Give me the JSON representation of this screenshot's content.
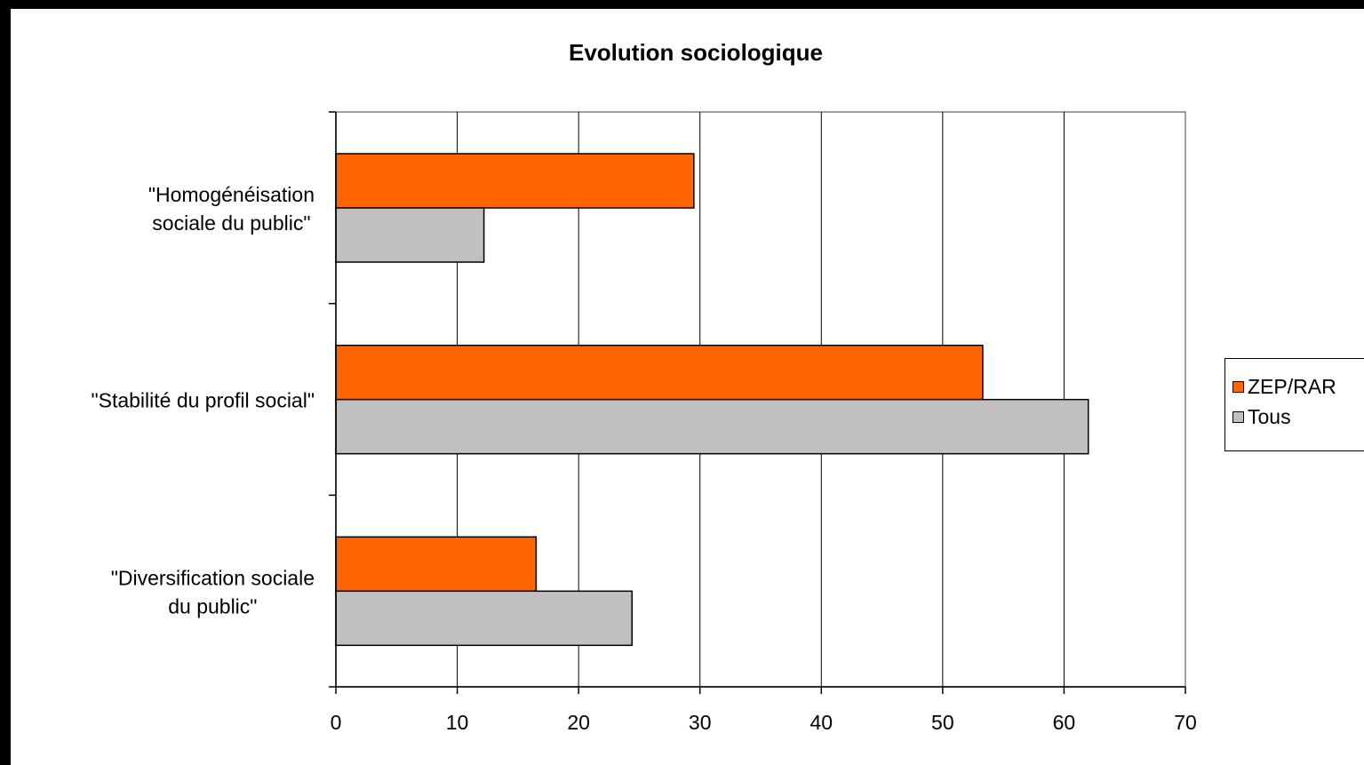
{
  "chart_data": {
    "type": "bar",
    "orientation": "horizontal",
    "title": "Evolution sociologique",
    "xlabel": "",
    "ylabel": "",
    "categories": [
      "\"Homogénéisation sociale du public\"",
      "\"Stabilité du profil social\"",
      "\"Diversification sociale du public\""
    ],
    "category_lines": [
      [
        "\"Homogénéisation",
        "sociale du public\""
      ],
      [
        "\"Stabilité du profil social\""
      ],
      [
        "\"Diversification sociale",
        "du public\""
      ]
    ],
    "series": [
      {
        "name": "ZEP/RAR",
        "color": "#ff6600",
        "values": [
          29.5,
          53.3,
          16.5
        ]
      },
      {
        "name": "Tous",
        "color": "#c0c0c0",
        "values": [
          12.2,
          62.0,
          24.4
        ]
      }
    ],
    "xlim": [
      0,
      70
    ],
    "xticks": [
      0,
      10,
      20,
      30,
      40,
      50,
      60,
      70
    ],
    "grid": true,
    "legend_position": "right"
  }
}
